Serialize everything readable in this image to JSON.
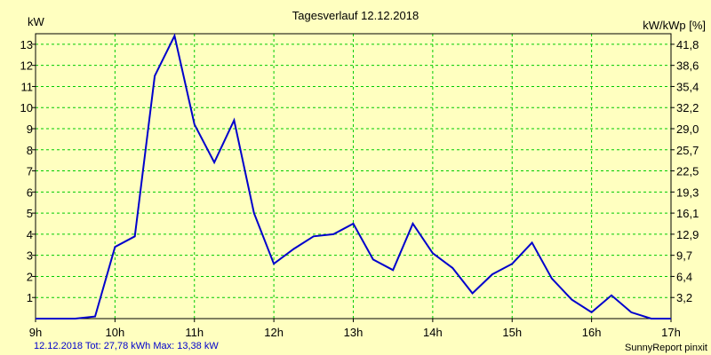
{
  "chart_data": {
    "type": "line",
    "title": "Tagesverlauf 12.12.2018",
    "ylabel": "kW",
    "ylabel_right": "kW/kWp [%]",
    "x_ticks": [
      "9h",
      "10h",
      "11h",
      "12h",
      "13h",
      "14h",
      "15h",
      "16h",
      "17h"
    ],
    "y_ticks": [
      "1",
      "2",
      "3",
      "4",
      "5",
      "6",
      "7",
      "8",
      "9",
      "10",
      "11",
      "12",
      "13"
    ],
    "y2_ticks": [
      "3,2",
      "6,4",
      "9,7",
      "12,9",
      "16,1",
      "19,3",
      "22,5",
      "25,7",
      "29,0",
      "32,2",
      "35,4",
      "38,6",
      "41,8"
    ],
    "xlim": [
      9,
      17
    ],
    "ylim": [
      0,
      13.5
    ],
    "grid": true,
    "line_color": "#0000cc",
    "grid_color": "#00cc00",
    "series": [
      {
        "x": [
          9.0,
          9.25,
          9.5,
          9.75,
          10.0,
          10.25,
          10.5,
          10.75,
          11.0,
          11.25,
          11.5,
          11.75,
          12.0,
          12.25,
          12.5,
          12.75,
          13.0,
          13.25,
          13.5,
          13.75,
          14.0,
          14.25,
          14.5,
          14.75,
          15.0,
          15.25,
          15.5,
          15.75,
          16.0,
          16.25,
          16.5,
          16.75,
          17.0
        ],
        "values": [
          0,
          0,
          0,
          0.1,
          3.4,
          3.9,
          11.5,
          13.4,
          9.2,
          7.4,
          9.4,
          5.0,
          2.6,
          3.3,
          3.9,
          4.0,
          4.5,
          2.8,
          2.3,
          4.5,
          3.1,
          2.4,
          1.2,
          2.1,
          2.6,
          3.6,
          1.9,
          0.9,
          0.3,
          1.1,
          0.3,
          0,
          0
        ]
      }
    ]
  },
  "footer": {
    "summary": "12.12.2018 Tot: 27,78 kWh Max: 13,38 kW",
    "credit": "SunnyReport pinxit"
  }
}
